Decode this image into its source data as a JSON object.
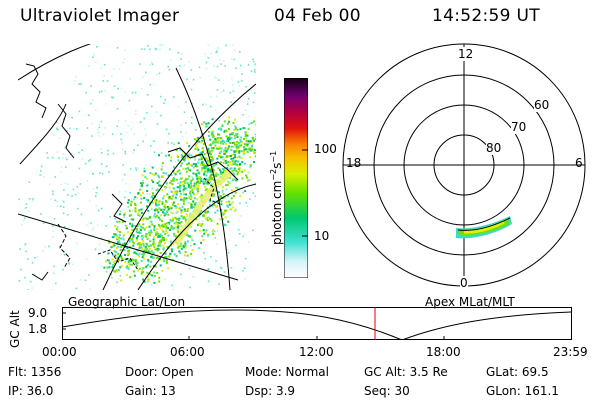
{
  "header": {
    "instrument": "Ultraviolet Imager",
    "date": "04 Feb 00",
    "time": "14:52:59 UT"
  },
  "colorbar": {
    "unit": "photon cm",
    "unit_sup1": "−2",
    "unit_mid": "s",
    "unit_sup2": "−1",
    "tick_100": "100",
    "tick_10": "10",
    "colors": [
      "#ffffff",
      "#b8f0f0",
      "#40e0c0",
      "#00c060",
      "#70e000",
      "#e0f000",
      "#f0b000",
      "#f07000",
      "#e00000",
      "#b00030",
      "#700060",
      "#200030"
    ]
  },
  "polar": {
    "labels": {
      "top": "12",
      "left": "18",
      "right": "6",
      "bottom": "0"
    },
    "lat_labels": [
      "60",
      "70",
      "80"
    ]
  },
  "panels": {
    "geo_label": "Geographic Lat/Lon",
    "apex_label": "Apex  MLat/MLT"
  },
  "gcalt_plot": {
    "ylabel": "GC Alt",
    "yticks": [
      "9.0",
      "1.8"
    ],
    "xticks": [
      "00:00",
      "06:00",
      "12:00",
      "18:00",
      "23:59"
    ],
    "marker_color": "#e00000"
  },
  "info": {
    "flt": "Flt: 1356",
    "ip": "IP: 36.0",
    "door": "Door: Open",
    "gain": "Gain: 13",
    "mode": "Mode: Normal",
    "dsp": "Dsp:     3.9",
    "gcalt": "GC Alt: 3.5 Re",
    "seq": "Seq: 30",
    "glat": "GLat:  69.5",
    "glon": "GLon: 161.1"
  }
}
